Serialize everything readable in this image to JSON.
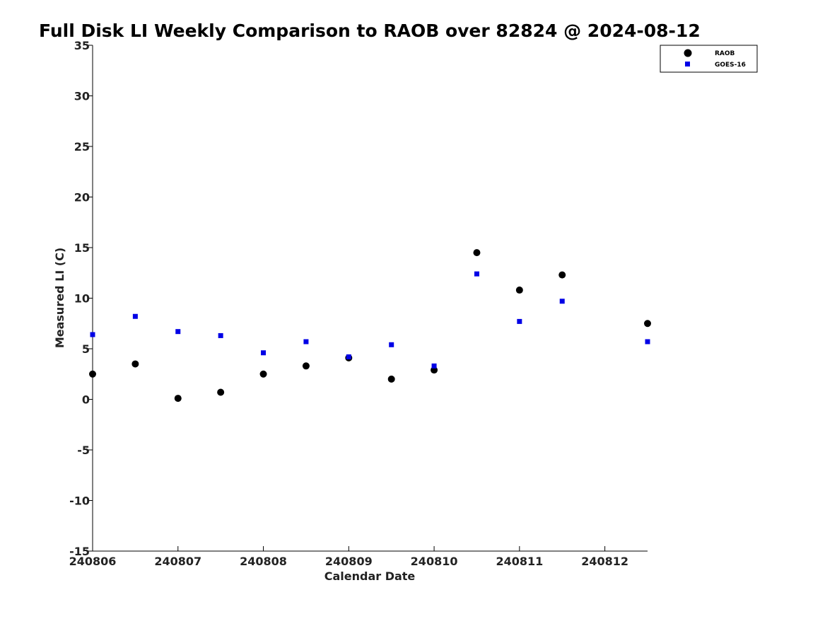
{
  "chart_data": {
    "type": "scatter",
    "title": "Full Disk LI Weekly Comparison to RAOB over 82824 @ 2024-08-12",
    "xlabel": "Calendar Date",
    "ylabel": "Measured LI (C)",
    "xlim": [
      240806,
      240812.5
    ],
    "ylim": [
      -15,
      35
    ],
    "x_ticks": [
      240806,
      240807,
      240808,
      240809,
      240810,
      240811,
      240812
    ],
    "x_tick_labels": [
      "240806",
      "240807",
      "240808",
      "240809",
      "240810",
      "240811",
      "240812"
    ],
    "y_ticks": [
      -15,
      -10,
      -5,
      0,
      5,
      10,
      15,
      20,
      25,
      30,
      35
    ],
    "y_tick_labels": [
      "-15",
      "-10",
      "-5",
      "0",
      "5",
      "10",
      "15",
      "20",
      "25",
      "30",
      "35"
    ],
    "grid": false,
    "legend_position": "top-right",
    "series": [
      {
        "name": "RAOB",
        "marker": "circle",
        "color": "#000000",
        "x": [
          240806,
          240806.5,
          240807,
          240807.5,
          240808,
          240808.5,
          240809,
          240809.5,
          240810,
          240810.5,
          240811,
          240811.5,
          240812.5
        ],
        "y": [
          2.5,
          3.5,
          0.1,
          0.7,
          2.5,
          3.3,
          4.1,
          2.0,
          2.9,
          14.5,
          10.8,
          12.3,
          7.5
        ]
      },
      {
        "name": "GOES-16",
        "marker": "square",
        "color": "#0000e6",
        "x": [
          240806,
          240806.5,
          240807,
          240807.5,
          240808,
          240808.5,
          240809,
          240809.5,
          240810,
          240810.5,
          240811,
          240811.5,
          240812.5
        ],
        "y": [
          6.4,
          8.2,
          6.7,
          6.3,
          4.6,
          5.7,
          4.2,
          5.4,
          3.3,
          12.4,
          7.7,
          9.7,
          5.7
        ]
      }
    ]
  }
}
